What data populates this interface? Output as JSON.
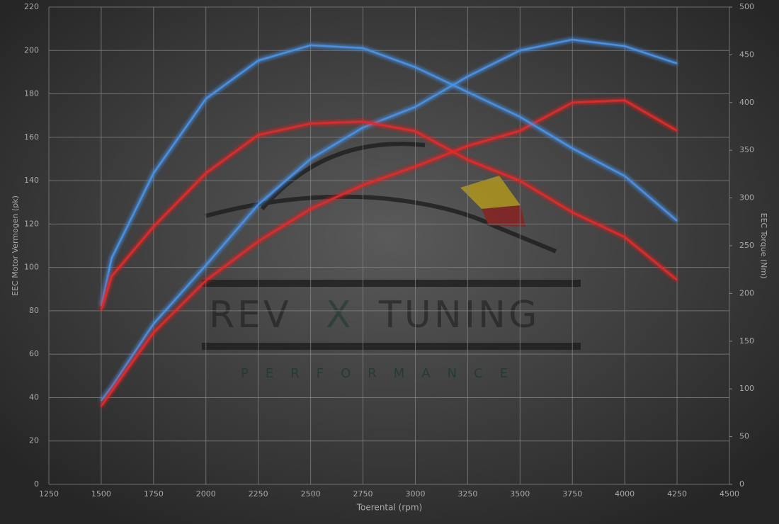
{
  "chart_data": {
    "type": "line",
    "xlabel": "Toerental (rpm)",
    "ylabel": "EEC Motor Vermogen (pk)",
    "y2label": "EEC Torque (Nm)",
    "watermark": {
      "left": "REV",
      "middle": "X",
      "right": "TUNING",
      "sub": "PERFORMANCE"
    },
    "x": [
      1500,
      1550,
      1750,
      2000,
      2250,
      2500,
      2750,
      3000,
      3250,
      3500,
      3750,
      4000,
      4250
    ],
    "xlim": [
      1250,
      4500
    ],
    "xticks": [
      1250,
      1500,
      1750,
      2000,
      2250,
      2500,
      2750,
      3000,
      3250,
      3500,
      3750,
      4000,
      4250,
      4500
    ],
    "ylim": [
      0,
      220
    ],
    "yticks": [
      0,
      20,
      40,
      60,
      80,
      100,
      120,
      140,
      160,
      180,
      200,
      220
    ],
    "y2lim": [
      0,
      500
    ],
    "y2ticks": [
      0,
      50,
      100,
      150,
      200,
      250,
      300,
      350,
      400,
      450,
      500
    ],
    "grid": true,
    "series": [
      {
        "color": "#4a90e2",
        "values": [
          38.5,
          45,
          74,
          101,
          129,
          150,
          164.5,
          174,
          188,
          200,
          205,
          202,
          194
        ]
      },
      {
        "color": "#e02a2a",
        "values": [
          36,
          43,
          70,
          94,
          112,
          127,
          138,
          146.5,
          156,
          163,
          176,
          177,
          163
        ]
      },
      {
        "color": "#4a90e2",
        "axis": "y2",
        "values": [
          187,
          237,
          326,
          404,
          444,
          460,
          457,
          437,
          411,
          385,
          352,
          323,
          276
        ]
      },
      {
        "color": "#e02a2a",
        "axis": "y2",
        "values": [
          183,
          218,
          270,
          326,
          366,
          378,
          380,
          370,
          340,
          318,
          285,
          259,
          214
        ]
      }
    ]
  }
}
